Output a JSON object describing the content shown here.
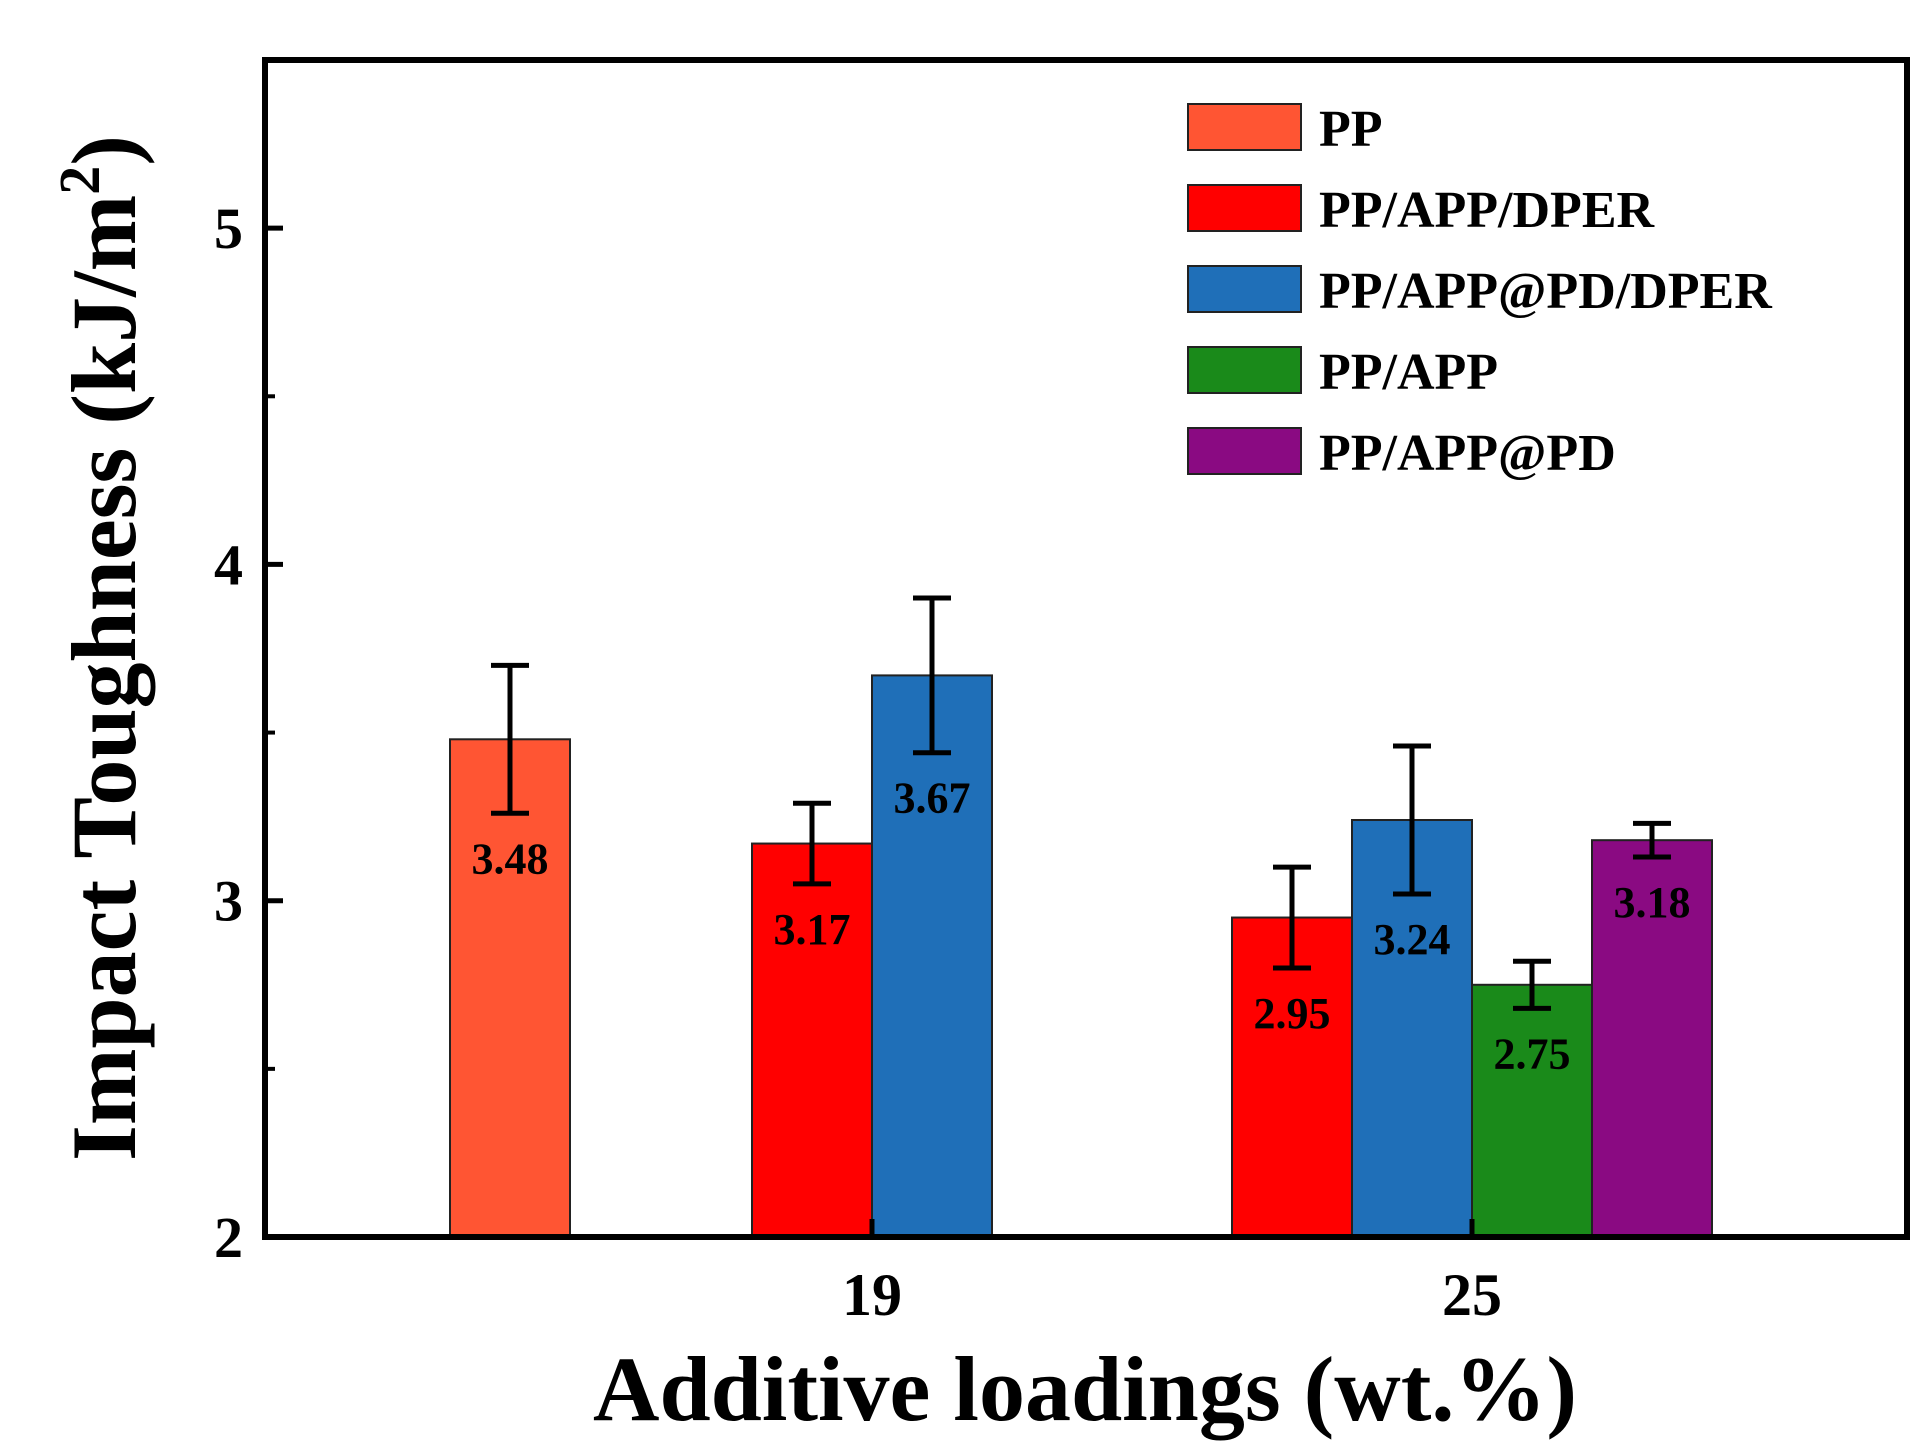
{
  "chart_data": {
    "type": "bar",
    "title": "",
    "xlabel": "Additive loadings (wt.%)",
    "ylabel": "Impact Toughness (kJ/m",
    "ylabel_sup": "2",
    "ylabel_close": ")",
    "ylim": [
      2,
      5.5
    ],
    "yticks": [
      2,
      3,
      4,
      5
    ],
    "ytick_labels": [
      "2",
      "3",
      "4",
      "5"
    ],
    "grid": false,
    "legend_position": "top-right",
    "groups": [
      {
        "label": "",
        "bars": [
          {
            "series": "PP",
            "value": 3.48,
            "error": 0.22,
            "label": "3.48"
          }
        ]
      },
      {
        "label": "19",
        "bars": [
          {
            "series": "PP/APP/DPER",
            "value": 3.17,
            "error": 0.12,
            "label": "3.17"
          },
          {
            "series": "PP/APP@PD/DPER",
            "value": 3.67,
            "error": 0.23,
            "label": "3.67"
          }
        ]
      },
      {
        "label": "25",
        "bars": [
          {
            "series": "PP/APP/DPER",
            "value": 2.95,
            "error": 0.15,
            "label": "2.95"
          },
          {
            "series": "PP/APP@PD/DPER",
            "value": 3.24,
            "error": 0.22,
            "label": "3.24"
          },
          {
            "series": "PP/APP",
            "value": 2.75,
            "error": 0.07,
            "label": "2.75"
          },
          {
            "series": "PP/APP@PD",
            "value": 3.18,
            "error": 0.05,
            "label": "3.18"
          }
        ]
      }
    ],
    "series": [
      {
        "name": "PP",
        "color": "#ff5533"
      },
      {
        "name": "PP/APP/DPER",
        "color": "#ff0000"
      },
      {
        "name": "PP/APP@PD/DPER",
        "color": "#1f6fb8"
      },
      {
        "name": "PP/APP",
        "color": "#1a8a1a"
      },
      {
        "name": "PP/APP@PD",
        "color": "#8a0a82"
      }
    ]
  }
}
